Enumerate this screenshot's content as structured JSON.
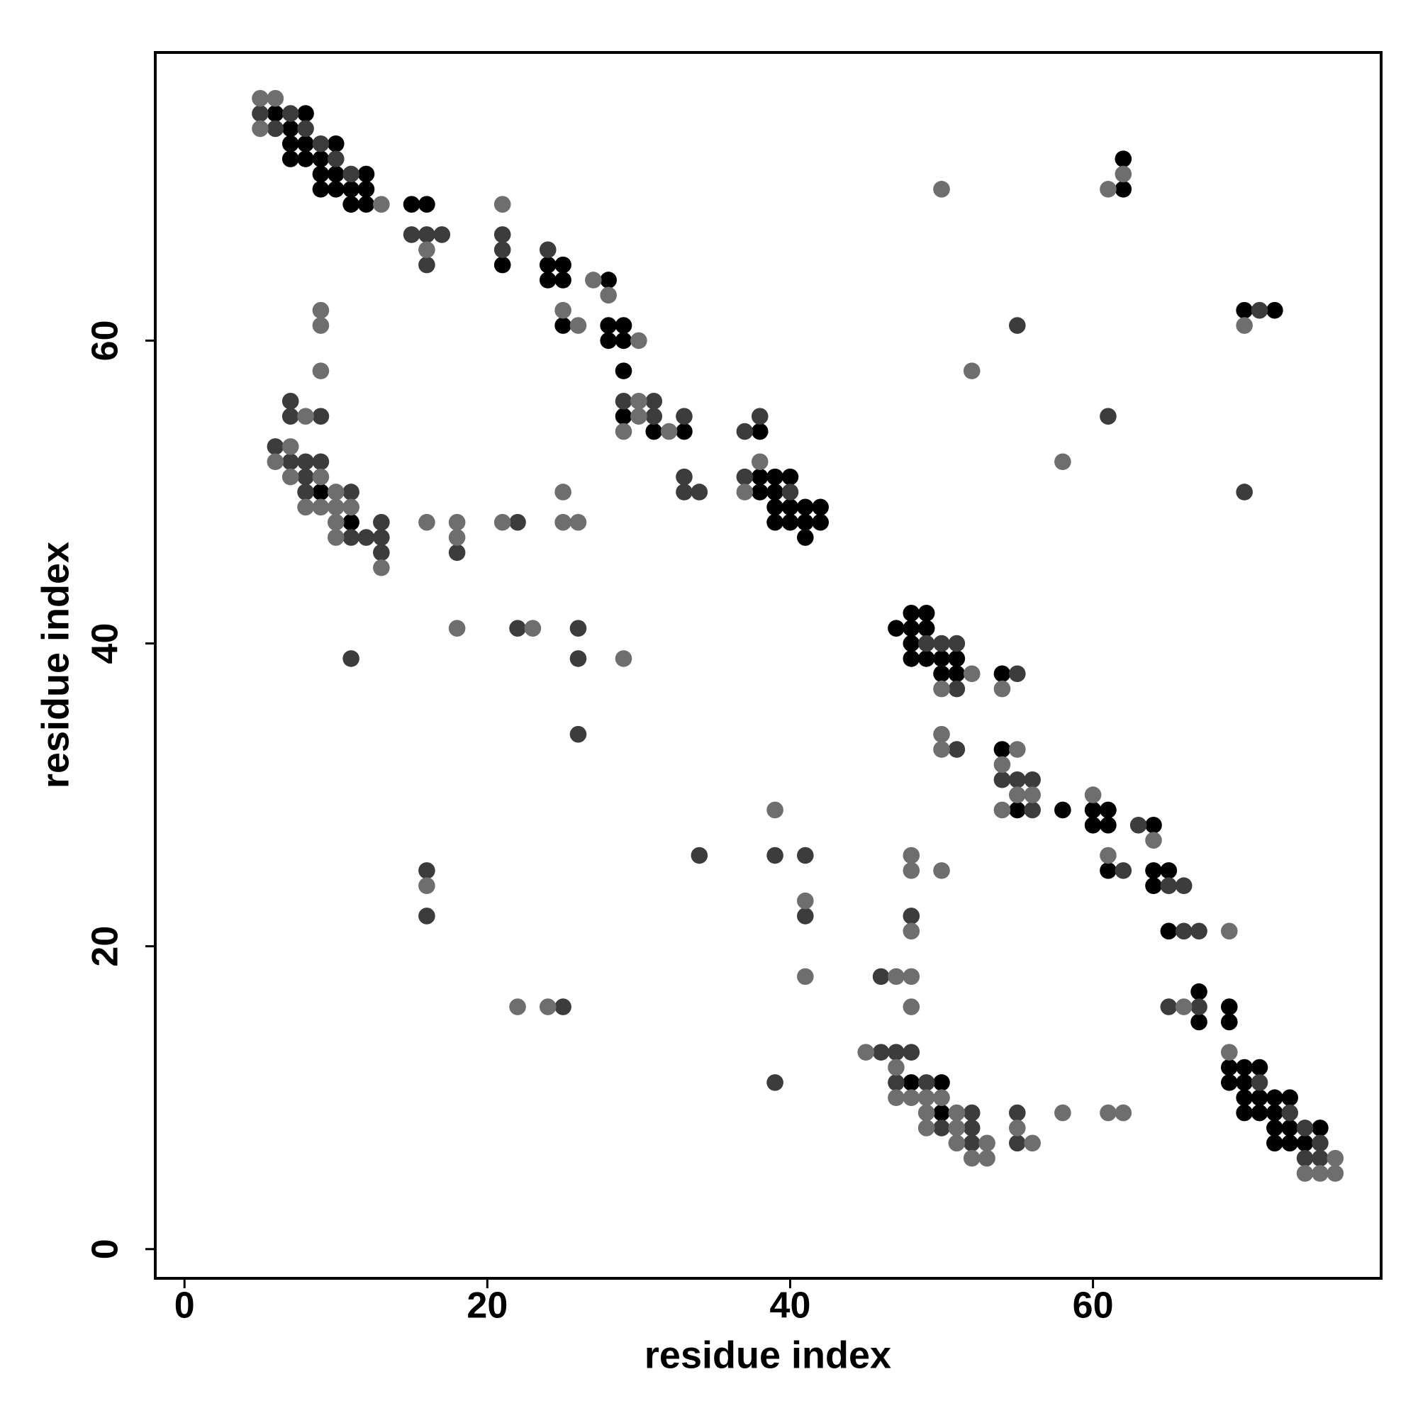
{
  "chart_data": {
    "type": "scatter",
    "xlabel": "residue index",
    "ylabel": "residue index",
    "xlim": [
      -1.93,
      79.03
    ],
    "ylim": [
      -1.93,
      79.03
    ],
    "xticks": [
      0,
      20,
      40,
      60
    ],
    "yticks": [
      0,
      20,
      40,
      60
    ],
    "grid": false,
    "series": [
      {
        "color": "#000000",
        "x": [
          6,
          8,
          7,
          7,
          8,
          10,
          7,
          8,
          9,
          62,
          9,
          10,
          12,
          9,
          10,
          11,
          12,
          62,
          11,
          12,
          15,
          16,
          21,
          24,
          25,
          24,
          25,
          28,
          70,
          72,
          25,
          28,
          29,
          28,
          29,
          29,
          29,
          31,
          33,
          38,
          38,
          39,
          40,
          9,
          38,
          39,
          39,
          40,
          41,
          42,
          11,
          39,
          40,
          41,
          42,
          41,
          48,
          49,
          47,
          48,
          49,
          48,
          48,
          49,
          50,
          51,
          50,
          51,
          54,
          54,
          55,
          58,
          60,
          61,
          60,
          61,
          64,
          61,
          64,
          65,
          64,
          65,
          67,
          69,
          67,
          69,
          69,
          70,
          71,
          48,
          50,
          69,
          70,
          70,
          71,
          72,
          73,
          50,
          70,
          71,
          72,
          72,
          73,
          75,
          72,
          73,
          74
        ],
        "values": [
          75,
          75,
          74,
          73,
          73,
          73,
          72,
          72,
          72,
          72,
          71,
          71,
          71,
          70,
          70,
          70,
          70,
          70,
          69,
          69,
          69,
          69,
          65,
          65,
          65,
          64,
          64,
          64,
          62,
          62,
          61,
          61,
          61,
          60,
          60,
          58,
          55,
          54,
          54,
          54,
          51,
          51,
          51,
          50,
          50,
          50,
          49,
          49,
          49,
          49,
          48,
          48,
          48,
          48,
          48,
          47,
          42,
          42,
          41,
          41,
          41,
          40,
          39,
          39,
          39,
          39,
          38,
          38,
          38,
          33,
          29,
          29,
          29,
          29,
          28,
          28,
          28,
          25,
          25,
          25,
          24,
          21,
          17,
          16,
          15,
          15,
          12,
          12,
          12,
          11,
          11,
          11,
          11,
          10,
          10,
          10,
          10,
          9,
          9,
          9,
          9,
          8,
          8,
          8,
          7,
          7,
          7
        ]
      },
      {
        "color": "#3c3c3c",
        "x": [
          5,
          7,
          6,
          8,
          9,
          10,
          11,
          15,
          16,
          17,
          21,
          21,
          24,
          16,
          71,
          55,
          7,
          29,
          31,
          7,
          9,
          31,
          33,
          38,
          61,
          37,
          6,
          7,
          8,
          9,
          8,
          33,
          37,
          8,
          11,
          33,
          34,
          40,
          70,
          13,
          22,
          11,
          12,
          13,
          13,
          18,
          22,
          26,
          49,
          50,
          51,
          11,
          26,
          55,
          51,
          26,
          51,
          54,
          55,
          56,
          56,
          63,
          34,
          39,
          41,
          16,
          62,
          65,
          66,
          16,
          41,
          48,
          66,
          67,
          46,
          25,
          65,
          67,
          46,
          47,
          48,
          39,
          47,
          49,
          71,
          52,
          55,
          73,
          50,
          52,
          74,
          52,
          55,
          75,
          74,
          75
        ],
        "values": [
          75,
          75,
          74,
          74,
          73,
          72,
          71,
          67,
          67,
          67,
          67,
          66,
          66,
          65,
          62,
          61,
          56,
          56,
          56,
          55,
          55,
          55,
          55,
          55,
          55,
          54,
          53,
          52,
          52,
          52,
          51,
          51,
          51,
          50,
          50,
          50,
          50,
          50,
          50,
          48,
          48,
          47,
          47,
          47,
          46,
          46,
          41,
          41,
          40,
          40,
          40,
          39,
          39,
          38,
          37,
          34,
          33,
          31,
          31,
          31,
          29,
          28,
          26,
          26,
          26,
          25,
          25,
          24,
          24,
          22,
          22,
          22,
          21,
          21,
          18,
          16,
          16,
          16,
          13,
          13,
          13,
          11,
          11,
          11,
          11,
          9,
          9,
          9,
          8,
          8,
          8,
          7,
          7,
          7,
          6,
          6
        ]
      },
      {
        "color": "#6e6e6e",
        "x": [
          5,
          6,
          5,
          62,
          50,
          61,
          13,
          21,
          16,
          27,
          28,
          9,
          25,
          9,
          26,
          70,
          30,
          9,
          52,
          30,
          8,
          30,
          29,
          32,
          7,
          6,
          38,
          58,
          7,
          9,
          10,
          25,
          37,
          8,
          9,
          10,
          11,
          10,
          16,
          18,
          21,
          25,
          26,
          10,
          18,
          13,
          18,
          23,
          29,
          52,
          50,
          54,
          50,
          50,
          55,
          54,
          55,
          56,
          60,
          39,
          54,
          64,
          48,
          61,
          48,
          50,
          16,
          41,
          48,
          69,
          41,
          47,
          48,
          22,
          24,
          48,
          66,
          45,
          69,
          47,
          47,
          48,
          49,
          50,
          49,
          51,
          58,
          61,
          62,
          49,
          51,
          55,
          51,
          53,
          56,
          52,
          53,
          76,
          74,
          75,
          76
        ],
        "values": [
          76,
          76,
          74,
          71,
          70,
          70,
          69,
          69,
          66,
          64,
          63,
          62,
          62,
          61,
          61,
          61,
          60,
          58,
          58,
          56,
          55,
          55,
          54,
          54,
          53,
          52,
          52,
          52,
          51,
          51,
          50,
          50,
          50,
          49,
          49,
          49,
          49,
          48,
          48,
          48,
          48,
          48,
          48,
          47,
          47,
          45,
          41,
          41,
          39,
          38,
          37,
          37,
          34,
          33,
          33,
          32,
          30,
          30,
          30,
          29,
          29,
          27,
          26,
          26,
          25,
          25,
          24,
          23,
          21,
          21,
          18,
          18,
          18,
          16,
          16,
          16,
          16,
          13,
          13,
          12,
          10,
          10,
          10,
          10,
          9,
          9,
          9,
          9,
          9,
          8,
          8,
          8,
          7,
          7,
          7,
          6,
          6,
          6,
          5,
          5,
          5
        ]
      }
    ]
  }
}
